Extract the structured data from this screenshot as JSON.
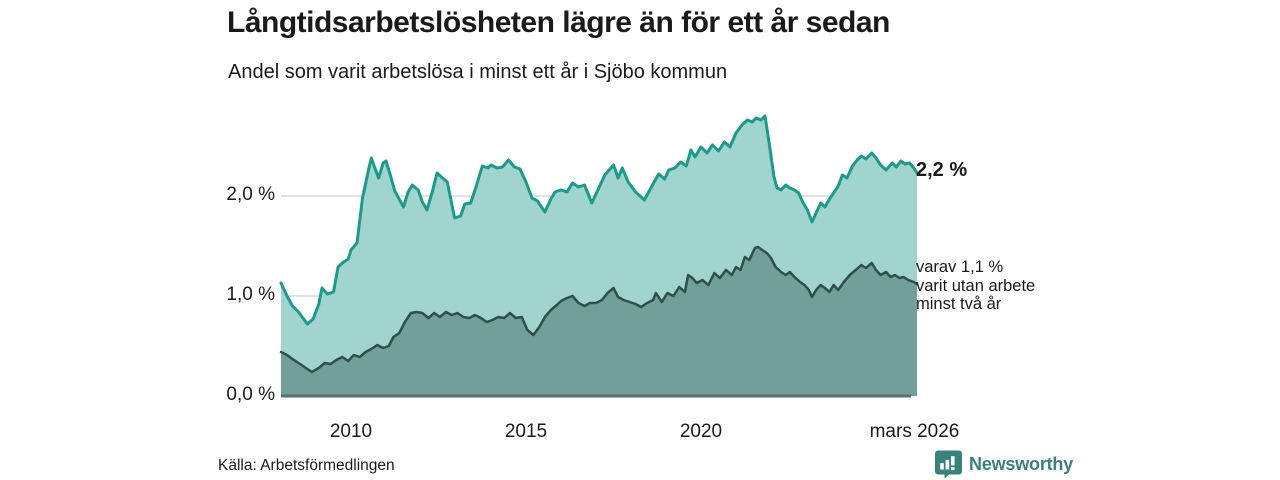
{
  "header": {
    "title": "Långtidsarbetslösheten lägre än för ett år sedan",
    "subtitle": "Andel som varit arbetslösa i minst ett år i Sjöbo kommun"
  },
  "chart_data": {
    "type": "area",
    "title": "Långtidsarbetslösheten lägre än för ett år sedan",
    "subtitle": "Andel som varit arbetslösa i minst ett år i Sjöbo kommun",
    "unit": "%",
    "grid": "horizontal-only",
    "legend_position": "right-of-line-ends",
    "x_axis": {
      "range": [
        2008.0,
        2026.25
      ],
      "ticks": [
        {
          "t": 2010,
          "label": "2010"
        },
        {
          "t": 2015,
          "label": "2015"
        },
        {
          "t": 2020,
          "label": "2020"
        },
        {
          "t": 2026.1,
          "label": "mars 2026"
        }
      ]
    },
    "y_axis": {
      "range": [
        0,
        2.9
      ],
      "gridlines": [
        1.0,
        2.0
      ],
      "ticks": [
        {
          "v": 0,
          "label": "0,0 %"
        },
        {
          "v": 1,
          "label": "1,0 %"
        },
        {
          "v": 2,
          "label": "2,0 %"
        }
      ]
    },
    "series": [
      {
        "name": "Arbetslösa minst ett år",
        "stroke": "#1a9c8b",
        "fill": "#a1d4ce",
        "stroke_width": 3,
        "points": [
          [
            2008.0,
            1.13
          ],
          [
            2008.17,
            1.0
          ],
          [
            2008.33,
            0.9
          ],
          [
            2008.5,
            0.84
          ],
          [
            2008.75,
            0.72
          ],
          [
            2008.92,
            0.77
          ],
          [
            2009.08,
            0.92
          ],
          [
            2009.17,
            1.08
          ],
          [
            2009.33,
            1.02
          ],
          [
            2009.5,
            1.04
          ],
          [
            2009.63,
            1.29
          ],
          [
            2009.75,
            1.33
          ],
          [
            2009.92,
            1.37
          ],
          [
            2010.0,
            1.46
          ],
          [
            2010.17,
            1.53
          ],
          [
            2010.33,
            1.98
          ],
          [
            2010.5,
            2.26
          ],
          [
            2010.58,
            2.38
          ],
          [
            2010.67,
            2.29
          ],
          [
            2010.79,
            2.18
          ],
          [
            2010.92,
            2.33
          ],
          [
            2011.0,
            2.35
          ],
          [
            2011.13,
            2.2
          ],
          [
            2011.25,
            2.05
          ],
          [
            2011.5,
            1.89
          ],
          [
            2011.63,
            2.04
          ],
          [
            2011.75,
            2.11
          ],
          [
            2011.92,
            2.06
          ],
          [
            2012.04,
            1.94
          ],
          [
            2012.17,
            1.86
          ],
          [
            2012.33,
            2.05
          ],
          [
            2012.46,
            2.23
          ],
          [
            2012.58,
            2.19
          ],
          [
            2012.75,
            2.14
          ],
          [
            2012.96,
            1.78
          ],
          [
            2013.13,
            1.8
          ],
          [
            2013.25,
            1.92
          ],
          [
            2013.42,
            1.93
          ],
          [
            2013.58,
            2.1
          ],
          [
            2013.75,
            2.3
          ],
          [
            2013.92,
            2.28
          ],
          [
            2014.0,
            2.31
          ],
          [
            2014.17,
            2.28
          ],
          [
            2014.33,
            2.29
          ],
          [
            2014.5,
            2.36
          ],
          [
            2014.67,
            2.29
          ],
          [
            2014.83,
            2.27
          ],
          [
            2015.0,
            2.14
          ],
          [
            2015.17,
            1.98
          ],
          [
            2015.33,
            1.95
          ],
          [
            2015.54,
            1.84
          ],
          [
            2015.71,
            1.97
          ],
          [
            2015.83,
            2.04
          ],
          [
            2016.0,
            2.06
          ],
          [
            2016.17,
            2.04
          ],
          [
            2016.33,
            2.13
          ],
          [
            2016.5,
            2.09
          ],
          [
            2016.67,
            2.11
          ],
          [
            2016.88,
            1.93
          ],
          [
            2017.08,
            2.08
          ],
          [
            2017.25,
            2.21
          ],
          [
            2017.5,
            2.31
          ],
          [
            2017.63,
            2.18
          ],
          [
            2017.75,
            2.28
          ],
          [
            2017.92,
            2.14
          ],
          [
            2018.13,
            2.04
          ],
          [
            2018.38,
            1.96
          ],
          [
            2018.63,
            2.12
          ],
          [
            2018.79,
            2.22
          ],
          [
            2018.96,
            2.17
          ],
          [
            2019.08,
            2.26
          ],
          [
            2019.25,
            2.28
          ],
          [
            2019.42,
            2.34
          ],
          [
            2019.58,
            2.3
          ],
          [
            2019.71,
            2.46
          ],
          [
            2019.83,
            2.39
          ],
          [
            2020.0,
            2.49
          ],
          [
            2020.17,
            2.43
          ],
          [
            2020.33,
            2.51
          ],
          [
            2020.5,
            2.45
          ],
          [
            2020.67,
            2.54
          ],
          [
            2020.83,
            2.49
          ],
          [
            2021.0,
            2.63
          ],
          [
            2021.17,
            2.71
          ],
          [
            2021.33,
            2.76
          ],
          [
            2021.46,
            2.74
          ],
          [
            2021.58,
            2.78
          ],
          [
            2021.71,
            2.76
          ],
          [
            2021.83,
            2.8
          ],
          [
            2021.96,
            2.5
          ],
          [
            2022.08,
            2.2
          ],
          [
            2022.17,
            2.08
          ],
          [
            2022.29,
            2.06
          ],
          [
            2022.42,
            2.11
          ],
          [
            2022.54,
            2.08
          ],
          [
            2022.67,
            2.06
          ],
          [
            2022.79,
            2.03
          ],
          [
            2022.92,
            1.93
          ],
          [
            2023.04,
            1.86
          ],
          [
            2023.17,
            1.74
          ],
          [
            2023.29,
            1.83
          ],
          [
            2023.42,
            1.93
          ],
          [
            2023.54,
            1.89
          ],
          [
            2023.67,
            1.97
          ],
          [
            2023.79,
            2.03
          ],
          [
            2023.92,
            2.1
          ],
          [
            2024.04,
            2.21
          ],
          [
            2024.17,
            2.18
          ],
          [
            2024.33,
            2.3
          ],
          [
            2024.46,
            2.36
          ],
          [
            2024.58,
            2.4
          ],
          [
            2024.71,
            2.37
          ],
          [
            2024.88,
            2.43
          ],
          [
            2025.0,
            2.38
          ],
          [
            2025.13,
            2.31
          ],
          [
            2025.29,
            2.26
          ],
          [
            2025.46,
            2.33
          ],
          [
            2025.58,
            2.29
          ],
          [
            2025.71,
            2.35
          ],
          [
            2025.83,
            2.32
          ],
          [
            2025.96,
            2.33
          ],
          [
            2026.08,
            2.28
          ],
          [
            2026.17,
            2.23
          ]
        ]
      },
      {
        "name": "Varit utan arbete minst två år",
        "stroke": "#2f4f4a",
        "fill": "#719f99",
        "stroke_width": 2.5,
        "points": [
          [
            2008.0,
            0.44
          ],
          [
            2008.17,
            0.41
          ],
          [
            2008.33,
            0.37
          ],
          [
            2008.5,
            0.33
          ],
          [
            2008.67,
            0.29
          ],
          [
            2008.88,
            0.24
          ],
          [
            2009.08,
            0.28
          ],
          [
            2009.25,
            0.33
          ],
          [
            2009.42,
            0.32
          ],
          [
            2009.58,
            0.36
          ],
          [
            2009.75,
            0.39
          ],
          [
            2009.92,
            0.35
          ],
          [
            2010.08,
            0.41
          ],
          [
            2010.25,
            0.39
          ],
          [
            2010.42,
            0.44
          ],
          [
            2010.58,
            0.47
          ],
          [
            2010.75,
            0.51
          ],
          [
            2010.92,
            0.48
          ],
          [
            2011.08,
            0.5
          ],
          [
            2011.21,
            0.59
          ],
          [
            2011.38,
            0.63
          ],
          [
            2011.54,
            0.74
          ],
          [
            2011.71,
            0.83
          ],
          [
            2011.88,
            0.84
          ],
          [
            2012.04,
            0.83
          ],
          [
            2012.21,
            0.78
          ],
          [
            2012.38,
            0.83
          ],
          [
            2012.54,
            0.79
          ],
          [
            2012.71,
            0.84
          ],
          [
            2012.88,
            0.81
          ],
          [
            2013.04,
            0.83
          ],
          [
            2013.21,
            0.79
          ],
          [
            2013.38,
            0.78
          ],
          [
            2013.54,
            0.81
          ],
          [
            2013.71,
            0.78
          ],
          [
            2013.88,
            0.74
          ],
          [
            2014.04,
            0.76
          ],
          [
            2014.21,
            0.79
          ],
          [
            2014.38,
            0.78
          ],
          [
            2014.54,
            0.83
          ],
          [
            2014.71,
            0.78
          ],
          [
            2014.88,
            0.79
          ],
          [
            2015.04,
            0.66
          ],
          [
            2015.21,
            0.61
          ],
          [
            2015.38,
            0.69
          ],
          [
            2015.54,
            0.79
          ],
          [
            2015.71,
            0.86
          ],
          [
            2015.88,
            0.91
          ],
          [
            2016.0,
            0.95
          ],
          [
            2016.17,
            0.98
          ],
          [
            2016.33,
            1.0
          ],
          [
            2016.5,
            0.93
          ],
          [
            2016.67,
            0.9
          ],
          [
            2016.83,
            0.93
          ],
          [
            2017.0,
            0.93
          ],
          [
            2017.17,
            0.96
          ],
          [
            2017.33,
            1.03
          ],
          [
            2017.5,
            1.08
          ],
          [
            2017.63,
            0.99
          ],
          [
            2017.79,
            0.96
          ],
          [
            2017.96,
            0.94
          ],
          [
            2018.13,
            0.92
          ],
          [
            2018.29,
            0.89
          ],
          [
            2018.46,
            0.93
          ],
          [
            2018.63,
            0.96
          ],
          [
            2018.71,
            1.03
          ],
          [
            2018.88,
            0.94
          ],
          [
            2019.04,
            1.03
          ],
          [
            2019.21,
            1.0
          ],
          [
            2019.38,
            1.09
          ],
          [
            2019.54,
            1.04
          ],
          [
            2019.63,
            1.21
          ],
          [
            2019.75,
            1.18
          ],
          [
            2019.88,
            1.13
          ],
          [
            2020.04,
            1.16
          ],
          [
            2020.21,
            1.11
          ],
          [
            2020.38,
            1.23
          ],
          [
            2020.54,
            1.18
          ],
          [
            2020.71,
            1.26
          ],
          [
            2020.88,
            1.21
          ],
          [
            2021.0,
            1.29
          ],
          [
            2021.13,
            1.26
          ],
          [
            2021.25,
            1.39
          ],
          [
            2021.38,
            1.36
          ],
          [
            2021.54,
            1.48
          ],
          [
            2021.63,
            1.49
          ],
          [
            2021.75,
            1.46
          ],
          [
            2021.88,
            1.43
          ],
          [
            2022.0,
            1.38
          ],
          [
            2022.13,
            1.29
          ],
          [
            2022.29,
            1.24
          ],
          [
            2022.42,
            1.21
          ],
          [
            2022.54,
            1.24
          ],
          [
            2022.67,
            1.19
          ],
          [
            2022.83,
            1.14
          ],
          [
            2022.96,
            1.11
          ],
          [
            2023.08,
            1.06
          ],
          [
            2023.17,
            0.99
          ],
          [
            2023.29,
            1.06
          ],
          [
            2023.42,
            1.11
          ],
          [
            2023.54,
            1.08
          ],
          [
            2023.67,
            1.04
          ],
          [
            2023.79,
            1.11
          ],
          [
            2023.92,
            1.06
          ],
          [
            2024.08,
            1.14
          ],
          [
            2024.25,
            1.21
          ],
          [
            2024.42,
            1.26
          ],
          [
            2024.58,
            1.31
          ],
          [
            2024.71,
            1.28
          ],
          [
            2024.88,
            1.33
          ],
          [
            2025.0,
            1.26
          ],
          [
            2025.13,
            1.21
          ],
          [
            2025.29,
            1.24
          ],
          [
            2025.42,
            1.19
          ],
          [
            2025.54,
            1.21
          ],
          [
            2025.67,
            1.18
          ],
          [
            2025.79,
            1.19
          ],
          [
            2025.92,
            1.16
          ],
          [
            2026.08,
            1.14
          ],
          [
            2026.17,
            1.12
          ]
        ]
      }
    ],
    "end_labels": {
      "total": "2,2 %",
      "subset": {
        "line1": "varav 1,1 %",
        "line2": "varit utan arbete",
        "line3": "minst två år"
      }
    }
  },
  "colors": {
    "accent_teal": "#1a9c8b",
    "area_light": "#a1d4ce",
    "dark_stroke": "#2f4f4a",
    "area_dark": "#719f99",
    "baseline": "#5f6e6b",
    "gridline": "#d9d9d9",
    "text": "#1a1a1a",
    "brand_teal": "#37837b"
  },
  "footer": {
    "source": "Källa: Arbetsförmedlingen",
    "brand": "Newsworthy"
  }
}
